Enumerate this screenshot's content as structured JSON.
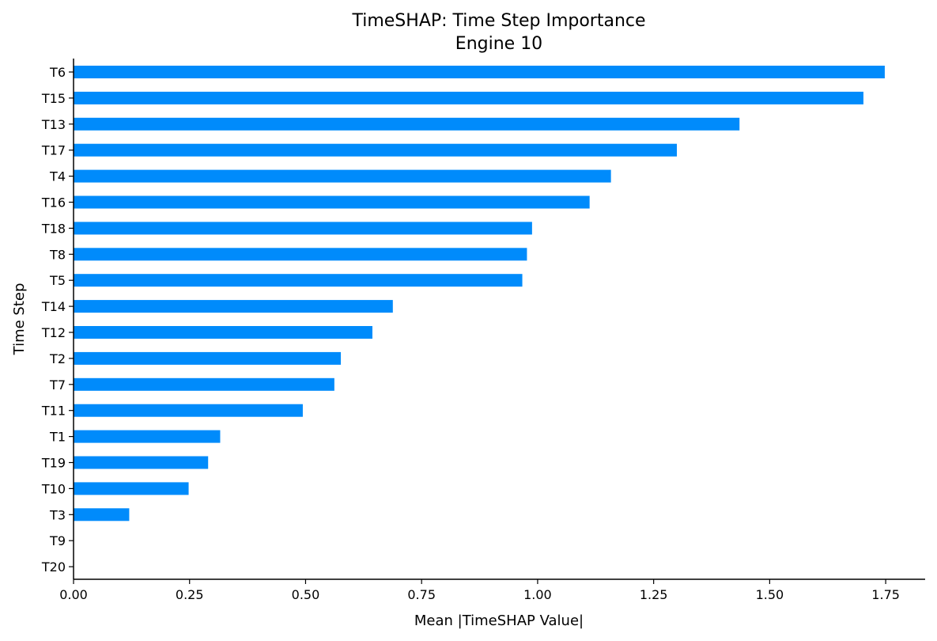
{
  "chart_data": {
    "type": "bar",
    "orientation": "horizontal",
    "title_lines": [
      "TimeSHAP: Time Step Importance",
      "Engine 10"
    ],
    "xlabel": "Mean |TimeSHAP Value|",
    "ylabel": "Time Step",
    "xlim": [
      0,
      1.835
    ],
    "x_ticks": [
      "0.00",
      "0.25",
      "0.50",
      "0.75",
      "1.00",
      "1.25",
      "1.50",
      "1.75"
    ],
    "categories": [
      "T6",
      "T15",
      "T13",
      "T17",
      "T4",
      "T16",
      "T18",
      "T8",
      "T5",
      "T14",
      "T12",
      "T2",
      "T7",
      "T11",
      "T1",
      "T19",
      "T10",
      "T3",
      "T9",
      "T20"
    ],
    "values": [
      1.748,
      1.702,
      1.435,
      1.3,
      1.158,
      1.112,
      0.988,
      0.977,
      0.967,
      0.688,
      0.644,
      0.576,
      0.562,
      0.494,
      0.316,
      0.29,
      0.248,
      0.12,
      0.0,
      0.0
    ],
    "bar_color": "#008bfb",
    "grid": false,
    "legend": "none"
  }
}
